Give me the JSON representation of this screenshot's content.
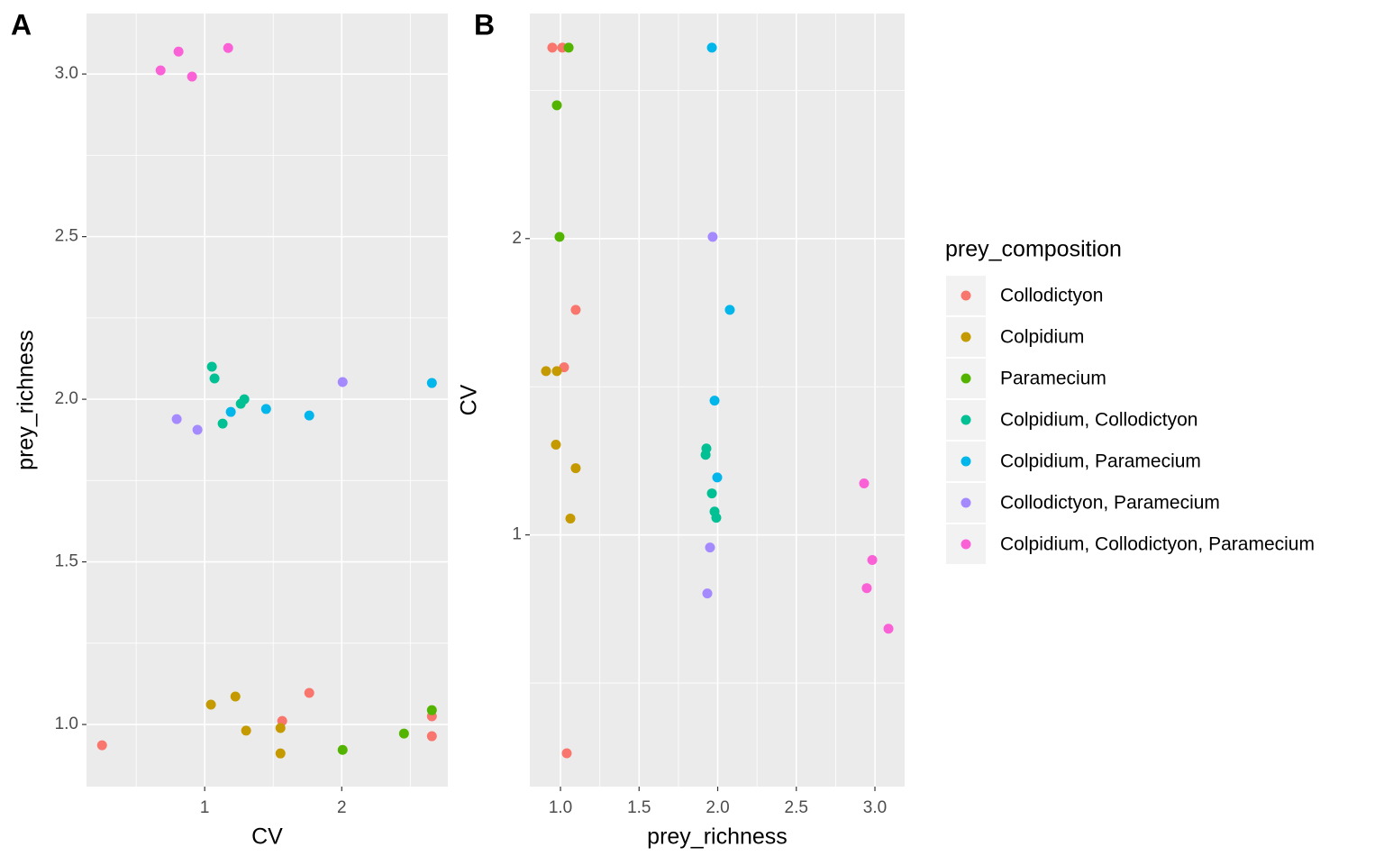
{
  "chart_data": [
    {
      "type": "scatter",
      "label": "A",
      "x_label": "CV",
      "y_label": "prey_richness",
      "xscale": "log",
      "xlim": [
        0.55,
        3.42
      ],
      "xticks": [
        1,
        2
      ],
      "ylim": [
        0.809,
        3.186
      ],
      "yticks": [
        {
          "value": 3,
          "label": "3.0"
        },
        2.5,
        {
          "value": 2,
          "label": "2.0"
        },
        1.5,
        {
          "value": 1,
          "label": "1.0"
        }
      ],
      "grid": true,
      "series": [
        {
          "name": "Collodictyon",
          "color": "#F8766D",
          "x": [
            0.595,
            1.697,
            1.48,
            3.155,
            3.155
          ],
          "values": [
            0.936,
            1.097,
            1.011,
            1.025,
            0.964
          ]
        },
        {
          "name": "Colpidium",
          "color": "#C49A00",
          "x": [
            1.032,
            1.168,
            1.233,
            1.467,
            1.467
          ],
          "values": [
            1.061,
            1.086,
            0.981,
            0.989,
            0.911
          ]
        },
        {
          "name": "Paramecium",
          "color": "#53B400",
          "x": [
            2.009,
            2.74,
            3.155
          ],
          "values": [
            0.922,
            0.972,
            1.044
          ]
        },
        {
          "name": "Colpidium, Collodictyon",
          "color": "#00C094",
          "x": [
            1.037,
            1.051,
            1.095,
            1.2,
            1.222
          ],
          "values": [
            2.1,
            2.064,
            1.925,
            1.986,
            2.0
          ]
        },
        {
          "name": "Colpidium, Paramecium",
          "color": "#00B6EB",
          "x": [
            1.141,
            1.364,
            1.697,
            3.155
          ],
          "values": [
            1.961,
            1.97,
            1.95,
            2.05
          ]
        },
        {
          "name": "Collodictyon, Paramecium",
          "color": "#A58AFF",
          "x": [
            0.868,
            0.964,
            2.009
          ],
          "values": [
            1.939,
            1.906,
            2.053
          ]
        },
        {
          "name": "Colpidium, Collodictyon, Paramecium",
          "color": "#FB61D7",
          "x": [
            0.8,
            0.876,
            0.938,
            1.126
          ],
          "values": [
            3.011,
            3.069,
            2.992,
            3.08
          ]
        }
      ]
    },
    {
      "type": "scatter",
      "label": "B",
      "x_label": "prey_richness",
      "y_label": "CV",
      "xlim": [
        0.805,
        3.189
      ],
      "xticks": [
        {
          "value": 1,
          "label": "1.0"
        },
        1.5,
        {
          "value": 2,
          "label": "2.0"
        },
        2.5,
        {
          "value": 3,
          "label": "3.0"
        }
      ],
      "yscale": "log",
      "ylim": [
        0.555,
        3.386
      ],
      "yticks": [
        1,
        2
      ],
      "grid": true,
      "legend": {
        "title": "prey_composition",
        "position": "right"
      },
      "series": [
        {
          "name": "Collodictyon",
          "color": "#F8766D",
          "x": [
            0.948,
            1.011,
            1.097,
            1.023,
            1.04
          ],
          "values": [
            3.126,
            3.126,
            1.693,
            1.48,
            0.6
          ]
        },
        {
          "name": "Colpidium",
          "color": "#C49A00",
          "x": [
            0.908,
            0.977,
            0.971,
            1.097,
            1.063
          ],
          "values": [
            1.467,
            1.467,
            1.235,
            1.169,
            1.039
          ]
        },
        {
          "name": "Paramecium",
          "color": "#53B400",
          "x": [
            1.052,
            0.977,
            0.994
          ],
          "values": [
            3.126,
            2.732,
            2.008
          ]
        },
        {
          "name": "Colpidium, Collodictyon",
          "color": "#00C094",
          "x": [
            1.928,
            1.923,
            1.963,
            1.98,
            1.991
          ],
          "values": [
            1.224,
            1.206,
            1.102,
            1.056,
            1.041
          ]
        },
        {
          "name": "Colpidium, Paramecium",
          "color": "#00B6EB",
          "x": [
            1.963,
            2.077,
            1.98,
            1.997
          ],
          "values": [
            3.126,
            1.693,
            1.369,
            1.144
          ]
        },
        {
          "name": "Collodictyon, Paramecium",
          "color": "#A58AFF",
          "x": [
            1.968,
            1.951,
            1.934
          ],
          "values": [
            2.008,
            0.971,
            0.872
          ]
        },
        {
          "name": "Colpidium, Collodictyon, Paramecium",
          "color": "#FB61D7",
          "x": [
            2.931,
            2.983,
            2.948,
            3.086
          ],
          "values": [
            1.128,
            0.943,
            0.883,
            0.803
          ]
        }
      ]
    }
  ]
}
